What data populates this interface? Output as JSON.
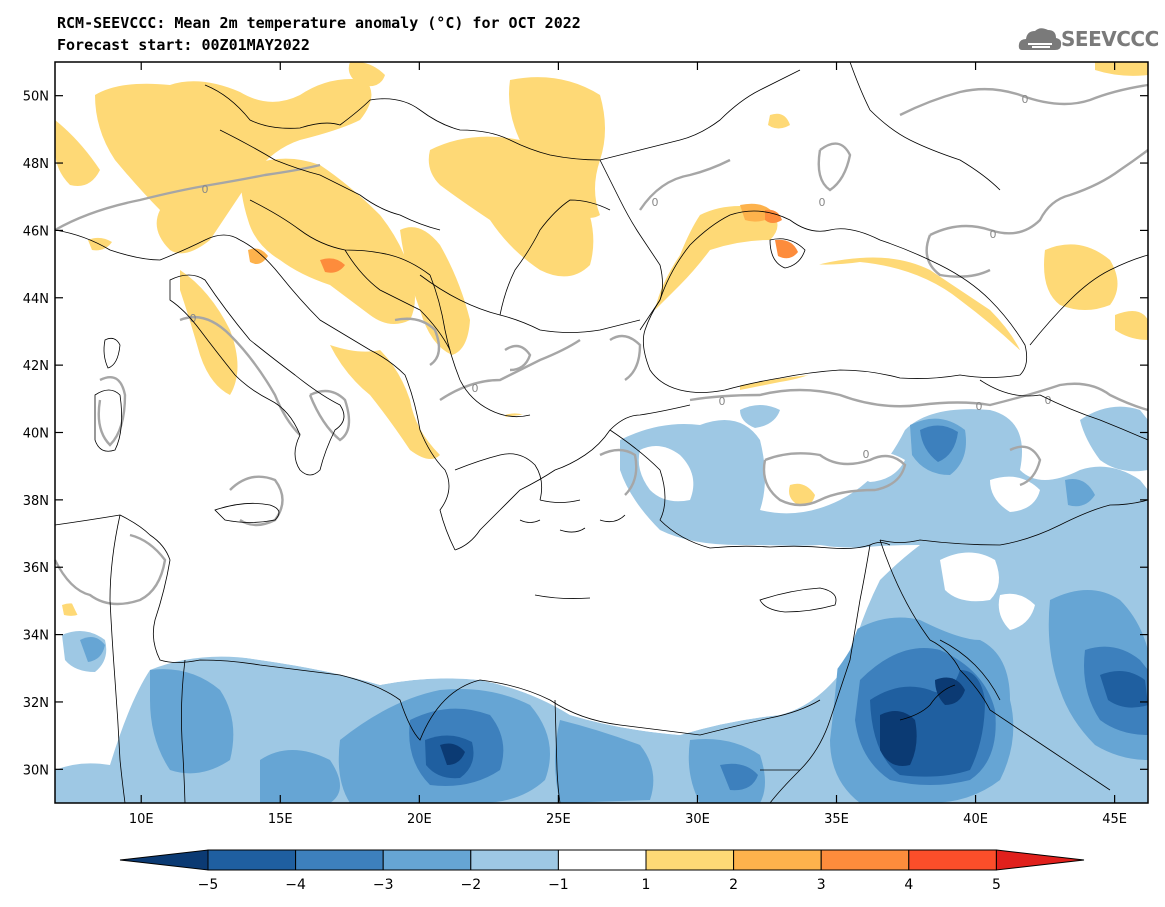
{
  "header": {
    "title": "RCM-SEEVCCC: Mean 2m temperature anomaly (°C) for OCT 2022",
    "subtitle": "Forecast start: 00Z01MAY2022"
  },
  "logo": {
    "text": "SEEVCCC",
    "icon": "cloud-logo-icon"
  },
  "map": {
    "lon_ticks": [
      {
        "value": 10,
        "label": "10E"
      },
      {
        "value": 15,
        "label": "15E"
      },
      {
        "value": 20,
        "label": "20E"
      },
      {
        "value": 25,
        "label": "25E"
      },
      {
        "value": 30,
        "label": "30E"
      },
      {
        "value": 35,
        "label": "35E"
      },
      {
        "value": 40,
        "label": "40E"
      },
      {
        "value": 45,
        "label": "45E"
      }
    ],
    "lat_ticks": [
      {
        "value": 50,
        "label": "50N"
      },
      {
        "value": 48,
        "label": "48N"
      },
      {
        "value": 46,
        "label": "46N"
      },
      {
        "value": 44,
        "label": "44N"
      },
      {
        "value": 42,
        "label": "42N"
      },
      {
        "value": 40,
        "label": "40N"
      },
      {
        "value": 38,
        "label": "38N"
      },
      {
        "value": 36,
        "label": "36N"
      },
      {
        "value": 34,
        "label": "34N"
      },
      {
        "value": 32,
        "label": "32N"
      },
      {
        "value": 30,
        "label": "30N"
      }
    ],
    "lon_range": [
      6.9,
      46.2
    ],
    "lat_range": [
      29.0,
      51.0
    ],
    "contour_label": "0",
    "contour_color": "#a6a6a6"
  },
  "colorbar": {
    "labels": [
      "−5",
      "−4",
      "−3",
      "−2",
      "−1",
      "1",
      "2",
      "3",
      "4",
      "5"
    ],
    "colors": [
      "#0b3a73",
      "#1f5fa0",
      "#3d80bd",
      "#66a5d4",
      "#9ec8e4",
      "#ffffff",
      "#fed976",
      "#fdb24c",
      "#fd8c3c",
      "#fc4e2a",
      "#e0201c"
    ]
  },
  "anomaly_colors": {
    "warm1": "#fed976",
    "warm2": "#fdb24c",
    "warm3": "#fd8c3c",
    "cold1": "#9ec8e4",
    "cold2": "#66a5d4",
    "cold3": "#3d80bd",
    "cold4": "#1f5fa0",
    "cold5": "#0b3a73"
  }
}
